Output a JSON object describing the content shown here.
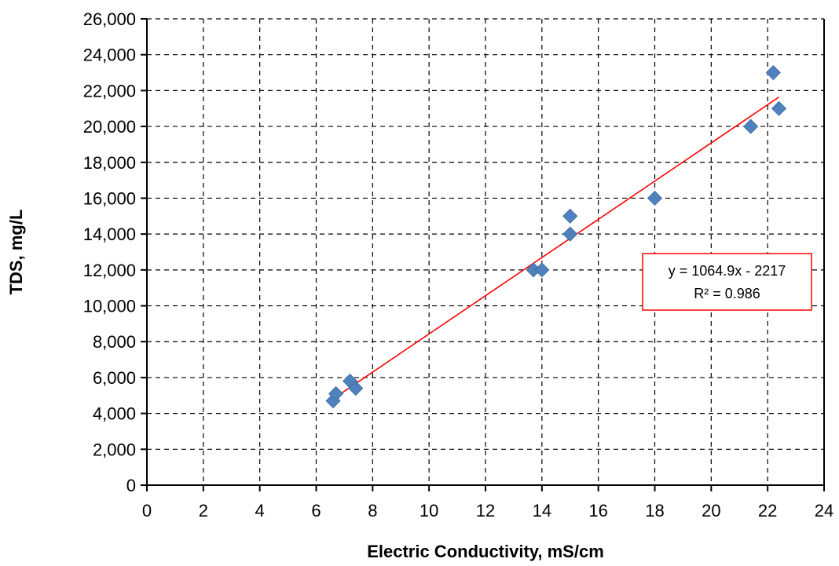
{
  "chart_data": {
    "type": "scatter",
    "xlabel": "Electric Conductivity, mS/cm",
    "ylabel": "TDS, mg/L",
    "xlim": [
      0,
      24
    ],
    "ylim": [
      0,
      26000
    ],
    "x_ticks": [
      0,
      2,
      4,
      6,
      8,
      10,
      12,
      14,
      16,
      18,
      20,
      22,
      24
    ],
    "y_ticks": [
      0,
      2000,
      4000,
      6000,
      8000,
      10000,
      12000,
      14000,
      16000,
      18000,
      20000,
      22000,
      24000,
      26000
    ],
    "y_tick_labels": [
      "0",
      "2,000",
      "4,000",
      "6,000",
      "8,000",
      "10,000",
      "12,000",
      "14,000",
      "16,000",
      "18,000",
      "20,000",
      "22,000",
      "24,000",
      "26,000"
    ],
    "grid": true,
    "series": [
      {
        "marker": "diamond",
        "color": "#4F81BD",
        "points": [
          {
            "x": 6.6,
            "y": 4700
          },
          {
            "x": 6.7,
            "y": 5100
          },
          {
            "x": 7.2,
            "y": 5800
          },
          {
            "x": 7.4,
            "y": 5400
          },
          {
            "x": 13.7,
            "y": 12000
          },
          {
            "x": 14.0,
            "y": 12000
          },
          {
            "x": 15.0,
            "y": 14000
          },
          {
            "x": 15.0,
            "y": 15000
          },
          {
            "x": 18.0,
            "y": 16000
          },
          {
            "x": 21.4,
            "y": 20000
          },
          {
            "x": 22.2,
            "y": 23000
          },
          {
            "x": 22.4,
            "y": 21000
          }
        ]
      }
    ],
    "trendline": {
      "type": "linear",
      "color": "#FF0000",
      "slope": 1064.9,
      "intercept": -2217,
      "x_range": [
        6.6,
        22.4
      ],
      "equation": "y = 1064.9x - 2217",
      "r_squared": "R² = 0.986",
      "label_border_color": "#FF0000"
    }
  }
}
